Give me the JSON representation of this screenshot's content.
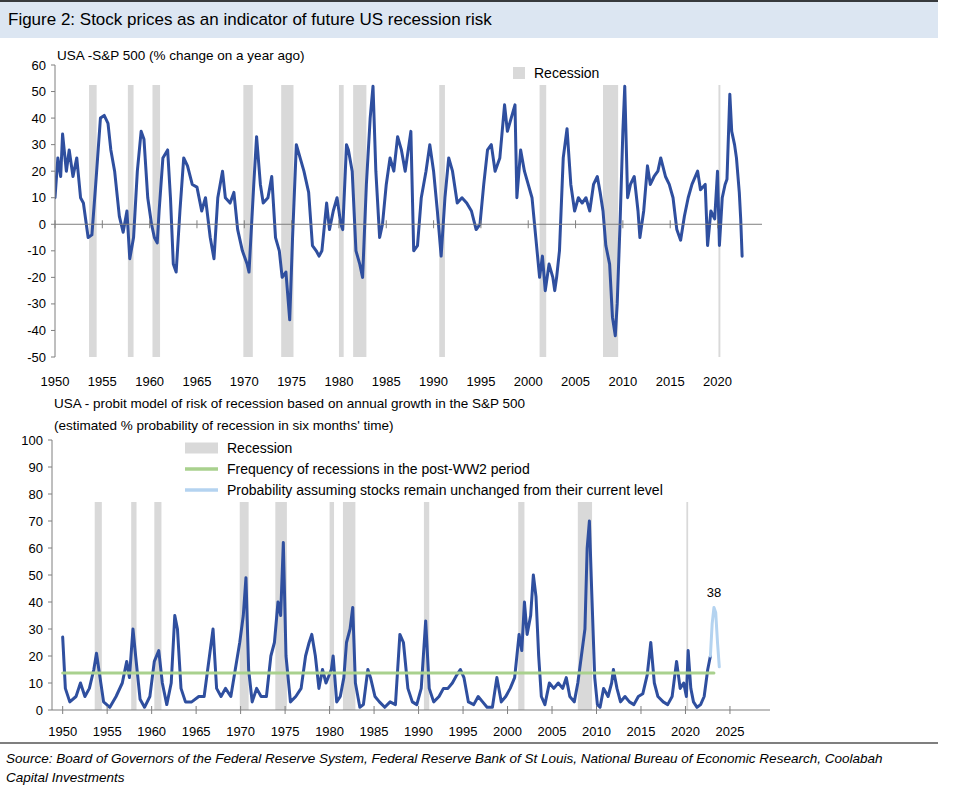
{
  "figure_title": "Figure 2: Stock prices as an indicator of future US recession risk",
  "source": [
    "Source: Board of Governors of the Federal Reserve System, Federal Reserve Bank of St Louis, National Bureau of Economic Research, Coolabah",
    "Capital Investments"
  ],
  "chart_data": [
    {
      "type": "line",
      "title": "USA -S&P 500 (% change on a year ago)",
      "xlim": [
        1950,
        2024.7
      ],
      "xticks": [
        1950,
        1955,
        1960,
        1965,
        1970,
        1975,
        1980,
        1985,
        1990,
        1995,
        2000,
        2005,
        2010,
        2015,
        2020
      ],
      "ylim": [
        -50,
        60
      ],
      "yticks": [
        -50,
        -40,
        -30,
        -20,
        -10,
        0,
        10,
        20,
        30,
        40,
        50,
        60
      ],
      "grid": false,
      "legend": "top-right",
      "recessions": {
        "name": "Recession",
        "color": "#d9d9d9",
        "periods": [
          [
            1953.6,
            1954.4
          ],
          [
            1957.7,
            1958.3
          ],
          [
            1960.3,
            1961.1
          ],
          [
            1969.9,
            1970.9
          ],
          [
            1973.9,
            1975.2
          ],
          [
            1980.0,
            1980.5
          ],
          [
            1981.5,
            1982.9
          ],
          [
            1990.6,
            1991.2
          ],
          [
            2001.2,
            2001.9
          ],
          [
            2007.9,
            2009.5
          ],
          [
            2020.1,
            2020.3
          ]
        ]
      },
      "series": [
        {
          "color": "#2f4f9f",
          "x": [
            1950.0,
            1950.3,
            1950.6,
            1950.8,
            1951.2,
            1951.5,
            1951.9,
            1952.3,
            1952.7,
            1953.0,
            1953.5,
            1953.9,
            1954.3,
            1954.8,
            1955.2,
            1955.6,
            1955.9,
            1956.3,
            1956.8,
            1957.2,
            1957.6,
            1957.9,
            1958.3,
            1958.7,
            1959.1,
            1959.4,
            1959.8,
            1960.2,
            1960.5,
            1960.8,
            1961.0,
            1961.4,
            1961.9,
            1962.2,
            1962.5,
            1962.8,
            1963.2,
            1963.6,
            1964.0,
            1964.5,
            1965.0,
            1965.5,
            1965.9,
            1966.4,
            1966.8,
            1967.2,
            1967.7,
            1968.0,
            1968.5,
            1968.9,
            1969.3,
            1969.8,
            1970.3,
            1970.5,
            1971.0,
            1971.3,
            1971.7,
            1972.0,
            1972.5,
            1972.9,
            1973.3,
            1973.7,
            1974.0,
            1974.4,
            1974.8,
            1975.1,
            1975.5,
            1975.9,
            1976.3,
            1976.8,
            1977.2,
            1977.6,
            1977.9,
            1978.2,
            1978.7,
            1979.0,
            1979.4,
            1979.8,
            1980.2,
            1980.4,
            1980.8,
            1981.0,
            1981.4,
            1981.8,
            1982.2,
            1982.5,
            1982.9,
            1983.3,
            1983.6,
            1983.9,
            1984.3,
            1984.6,
            1985.0,
            1985.4,
            1985.8,
            1986.2,
            1986.6,
            1987.0,
            1987.6,
            1987.9,
            1988.3,
            1988.7,
            1989.2,
            1989.6,
            1990.0,
            1990.4,
            1990.8,
            1991.2,
            1991.6,
            1992.0,
            1992.5,
            1993.0,
            1993.5,
            1994.0,
            1994.5,
            1994.9,
            1995.3,
            1995.7,
            1996.1,
            1996.5,
            1997.0,
            1997.5,
            1997.8,
            1998.2,
            1998.6,
            1998.8,
            1999.2,
            1999.6,
            2000.0,
            2000.4,
            2000.8,
            2001.2,
            2001.5,
            2001.8,
            2002.2,
            2002.6,
            2002.8,
            2003.0,
            2003.3,
            2003.7,
            2004.1,
            2004.5,
            2004.9,
            2005.3,
            2005.7,
            2006.1,
            2006.5,
            2006.9,
            2007.3,
            2007.6,
            2007.9,
            2008.2,
            2008.6,
            2008.9,
            2009.2,
            2009.4,
            2009.7,
            2010.0,
            2010.2,
            2010.5,
            2010.8,
            2011.2,
            2011.6,
            2011.8,
            2012.2,
            2012.6,
            2012.9,
            2013.3,
            2013.7,
            2014.0,
            2014.5,
            2014.9,
            2015.3,
            2015.7,
            2016.1,
            2016.5,
            2016.9,
            2017.3,
            2017.9,
            2018.2,
            2018.7,
            2018.95,
            2019.3,
            2019.7,
            2020.0,
            2020.2,
            2020.5,
            2020.8,
            2021.0,
            2021.3,
            2021.5,
            2021.8,
            2022.0,
            2022.3,
            2022.45,
            2022.6
          ],
          "values": [
            10,
            25,
            18,
            34,
            20,
            28,
            18,
            25,
            10,
            8,
            -5,
            -4,
            15,
            40,
            41,
            38,
            28,
            20,
            3,
            -3,
            5,
            -13,
            -5,
            20,
            35,
            32,
            10,
            0,
            -5,
            -7,
            5,
            25,
            28,
            10,
            -15,
            -18,
            5,
            25,
            22,
            15,
            14,
            5,
            10,
            -5,
            -13,
            10,
            20,
            10,
            8,
            12,
            -2,
            -10,
            -15,
            -18,
            15,
            33,
            15,
            8,
            10,
            18,
            -5,
            -10,
            -20,
            -18,
            -36,
            -5,
            30,
            25,
            20,
            12,
            -8,
            -10,
            -12,
            -10,
            8,
            -2,
            5,
            10,
            0,
            -2,
            30,
            28,
            20,
            -10,
            -15,
            -20,
            15,
            40,
            52,
            20,
            -5,
            0,
            15,
            25,
            20,
            33,
            28,
            20,
            35,
            -10,
            -8,
            10,
            20,
            30,
            20,
            5,
            -12,
            10,
            25,
            20,
            8,
            10,
            8,
            5,
            -2,
            0,
            15,
            28,
            30,
            20,
            25,
            45,
            35,
            40,
            45,
            10,
            28,
            20,
            15,
            10,
            -5,
            -20,
            -12,
            -25,
            -15,
            -20,
            -25,
            -20,
            -10,
            25,
            36,
            15,
            5,
            10,
            8,
            10,
            5,
            15,
            18,
            12,
            5,
            -8,
            -15,
            -35,
            -42,
            -30,
            0,
            35,
            52,
            10,
            15,
            18,
            5,
            -5,
            5,
            22,
            15,
            18,
            20,
            25,
            18,
            15,
            10,
            -2,
            -6,
            3,
            10,
            15,
            20,
            13,
            15,
            -8,
            5,
            2,
            20,
            -8,
            10,
            15,
            17,
            49,
            35,
            30,
            25,
            12,
            2,
            -12
          ]
        }
      ]
    },
    {
      "type": "line",
      "title": "USA - probit model of risk of recession based on annual growth in the S&P 500",
      "subtitle": "(estimated % probability of recession in six months' time)",
      "xlim": [
        1948.8,
        2029.5
      ],
      "xticks": [
        1950,
        1955,
        1960,
        1965,
        1970,
        1975,
        1980,
        1985,
        1990,
        1995,
        2000,
        2005,
        2010,
        2015,
        2020,
        2025
      ],
      "ylim": [
        0,
        100
      ],
      "yticks": [
        0,
        10,
        20,
        30,
        40,
        50,
        60,
        70,
        80,
        90,
        100
      ],
      "grid": false,
      "legend": "top-left",
      "recessions": {
        "name": "Recession",
        "color": "#d9d9d9",
        "periods": [
          [
            1953.6,
            1954.4
          ],
          [
            1957.7,
            1958.3
          ],
          [
            1960.3,
            1961.1
          ],
          [
            1969.9,
            1970.9
          ],
          [
            1973.9,
            1975.2
          ],
          [
            1980.0,
            1980.5
          ],
          [
            1981.5,
            1982.9
          ],
          [
            1990.6,
            1991.2
          ],
          [
            2001.2,
            2001.9
          ],
          [
            2007.9,
            2009.5
          ],
          [
            2020.1,
            2020.3
          ]
        ]
      },
      "series": [
        {
          "color": "#2f4f9f",
          "x": [
            1950.0,
            1950.3,
            1950.8,
            1951.5,
            1952.0,
            1952.5,
            1953.0,
            1953.5,
            1953.8,
            1954.2,
            1954.6,
            1955.3,
            1956.0,
            1956.7,
            1957.2,
            1957.5,
            1957.9,
            1958.2,
            1958.7,
            1959.2,
            1959.8,
            1960.3,
            1960.8,
            1961.2,
            1961.7,
            1962.2,
            1962.6,
            1962.9,
            1963.3,
            1963.8,
            1964.5,
            1965.3,
            1965.9,
            1966.5,
            1966.9,
            1967.3,
            1967.8,
            1968.3,
            1968.9,
            1969.4,
            1969.9,
            1970.3,
            1970.6,
            1970.9,
            1971.3,
            1971.8,
            1972.3,
            1972.9,
            1973.4,
            1973.8,
            1974.2,
            1974.5,
            1974.8,
            1975.1,
            1975.6,
            1976.2,
            1976.8,
            1977.3,
            1977.7,
            1978.0,
            1978.4,
            1978.8,
            1979.2,
            1979.6,
            1980.2,
            1980.4,
            1980.8,
            1981.2,
            1981.6,
            1981.9,
            1982.3,
            1982.6,
            1982.9,
            1983.4,
            1983.8,
            1984.3,
            1984.6,
            1985.1,
            1985.6,
            1986.2,
            1986.8,
            1987.4,
            1987.9,
            1988.3,
            1988.8,
            1989.3,
            1989.8,
            1990.3,
            1990.8,
            1991.2,
            1991.7,
            1992.3,
            1992.8,
            1993.3,
            1993.8,
            1994.3,
            1994.7,
            1995.1,
            1995.6,
            1996.2,
            1996.7,
            1997.2,
            1997.7,
            1998.3,
            1998.8,
            1999.3,
            1999.8,
            2000.3,
            2000.8,
            2001.3,
            2001.6,
            2001.9,
            2002.2,
            2002.6,
            2002.9,
            2003.2,
            2003.5,
            2003.8,
            2004.2,
            2004.7,
            2005.2,
            2005.7,
            2006.2,
            2006.6,
            2007.0,
            2007.5,
            2007.9,
            2008.3,
            2008.7,
            2008.95,
            2009.2,
            2009.45,
            2009.8,
            2010.1,
            2010.4,
            2010.8,
            2011.3,
            2011.7,
            2011.9,
            2012.3,
            2012.7,
            2013.2,
            2013.7,
            2014.2,
            2014.7,
            2015.2,
            2015.7,
            2016.1,
            2016.5,
            2016.9,
            2017.5,
            2018.0,
            2018.5,
            2019.0,
            2019.4,
            2019.8,
            2020.1,
            2020.3,
            2020.6,
            2020.9,
            2021.3,
            2021.7,
            2022.1,
            2022.5,
            2022.8
          ],
          "values": [
            27,
            8,
            3,
            5,
            10,
            5,
            8,
            15,
            21,
            12,
            3,
            1,
            5,
            10,
            18,
            12,
            30,
            20,
            4,
            1,
            5,
            18,
            22,
            10,
            2,
            10,
            35,
            30,
            8,
            3,
            3,
            5,
            5,
            20,
            30,
            8,
            5,
            8,
            5,
            15,
            25,
            35,
            49,
            15,
            3,
            8,
            5,
            5,
            20,
            25,
            40,
            35,
            62,
            20,
            3,
            5,
            8,
            20,
            25,
            28,
            20,
            8,
            15,
            10,
            15,
            20,
            3,
            5,
            12,
            25,
            30,
            38,
            10,
            1,
            2,
            15,
            12,
            5,
            3,
            1,
            3,
            2,
            28,
            25,
            8,
            3,
            2,
            8,
            33,
            8,
            3,
            5,
            8,
            8,
            10,
            13,
            15,
            12,
            3,
            2,
            5,
            3,
            1,
            1,
            12,
            3,
            5,
            8,
            12,
            28,
            22,
            40,
            28,
            35,
            50,
            42,
            20,
            5,
            2,
            10,
            8,
            10,
            8,
            12,
            5,
            3,
            10,
            20,
            30,
            60,
            70,
            45,
            12,
            2,
            1,
            8,
            5,
            10,
            15,
            8,
            3,
            5,
            3,
            2,
            5,
            6,
            13,
            25,
            10,
            5,
            3,
            2,
            5,
            18,
            8,
            10,
            5,
            22,
            8,
            3,
            1,
            2,
            5,
            15,
            20
          ]
        },
        {
          "name": "Frequency of recessions in the post-WW2 period",
          "color": "#a9d18e",
          "x": [
            1950,
            2023.2
          ],
          "values": [
            13.7,
            13.7
          ]
        },
        {
          "name": "Probability assuming stocks remain unchanged from their current level",
          "color": "#b4d3f0",
          "x": [
            2022.8,
            2023.0,
            2023.2,
            2023.4,
            2023.6,
            2023.8
          ],
          "values": [
            20,
            32,
            38,
            36,
            25,
            16
          ]
        }
      ],
      "annotations": [
        {
          "text": "38",
          "x": 2023.2,
          "y": 38
        }
      ]
    }
  ]
}
